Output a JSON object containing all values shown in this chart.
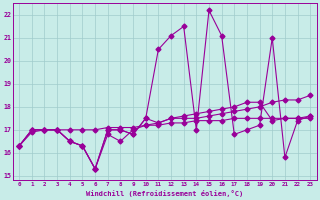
{
  "xlabel": "Windchill (Refroidissement éolien,°C)",
  "background_color": "#c8ece8",
  "grid_color": "#a0cccc",
  "line_color": "#990099",
  "hours": [
    0,
    1,
    2,
    3,
    4,
    5,
    6,
    7,
    8,
    9,
    10,
    11,
    12,
    13,
    14,
    15,
    16,
    17,
    18,
    19,
    20,
    21,
    22,
    23
  ],
  "series1": [
    16.3,
    17.0,
    17.0,
    17.0,
    16.5,
    16.3,
    15.3,
    17.0,
    17.0,
    16.8,
    17.5,
    20.5,
    21.1,
    21.5,
    17.0,
    22.2,
    21.1,
    16.8,
    17.0,
    17.2,
    21.0,
    15.8,
    17.4,
    17.6
  ],
  "series2": [
    16.3,
    17.0,
    17.0,
    17.0,
    16.5,
    16.3,
    15.3,
    17.0,
    17.0,
    16.8,
    17.5,
    17.3,
    17.5,
    17.5,
    17.5,
    17.6,
    17.7,
    17.8,
    17.9,
    18.0,
    18.2,
    18.3,
    18.3,
    18.5
  ],
  "series3": [
    16.3,
    16.9,
    17.0,
    17.0,
    17.0,
    17.0,
    17.0,
    17.1,
    17.1,
    17.1,
    17.2,
    17.2,
    17.3,
    17.3,
    17.4,
    17.4,
    17.4,
    17.5,
    17.5,
    17.5,
    17.5,
    17.5,
    17.5,
    17.6
  ],
  "series4": [
    16.3,
    17.0,
    17.0,
    17.0,
    16.5,
    16.3,
    15.3,
    16.8,
    16.5,
    17.0,
    17.2,
    17.3,
    17.5,
    17.6,
    17.7,
    17.8,
    17.9,
    18.0,
    18.2,
    18.2,
    17.4,
    17.5,
    17.5,
    17.5
  ],
  "ylim": [
    14.8,
    22.5
  ],
  "yticks": [
    15,
    16,
    17,
    18,
    19,
    20,
    21,
    22
  ],
  "xticks": [
    0,
    1,
    2,
    3,
    4,
    5,
    6,
    7,
    8,
    9,
    10,
    11,
    12,
    13,
    14,
    15,
    16,
    17,
    18,
    19,
    20,
    21,
    22,
    23
  ],
  "markersize": 2.5,
  "linewidth": 0.8
}
